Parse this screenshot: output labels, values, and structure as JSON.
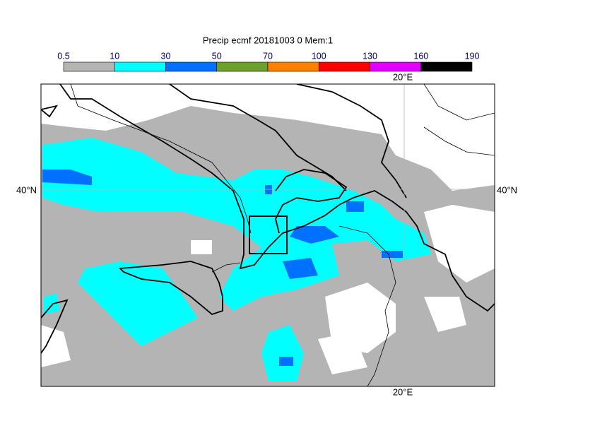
{
  "title": "Precip ecmf 20181003 0 Mem:1",
  "colorbar": {
    "levels": [
      0.5,
      10,
      30,
      50,
      70,
      100,
      130,
      160,
      190
    ],
    "colors": [
      "#b4b4b4",
      "#00ffff",
      "#0070ff",
      "#6ca02c",
      "#ff8000",
      "#ff0000",
      "#e000ff",
      "#000000"
    ]
  },
  "map": {
    "lon_label": "20°E",
    "lat_label": "40°N"
  }
}
